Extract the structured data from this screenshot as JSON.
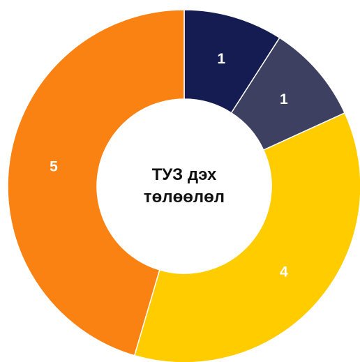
{
  "chart_data": {
    "type": "donut",
    "title": "ТУЗ дэх төлөөлөл",
    "values": [
      1,
      1,
      4,
      5
    ],
    "colors": [
      "#141c52",
      "#3d4060",
      "#ffcc00",
      "#f98212"
    ]
  }
}
